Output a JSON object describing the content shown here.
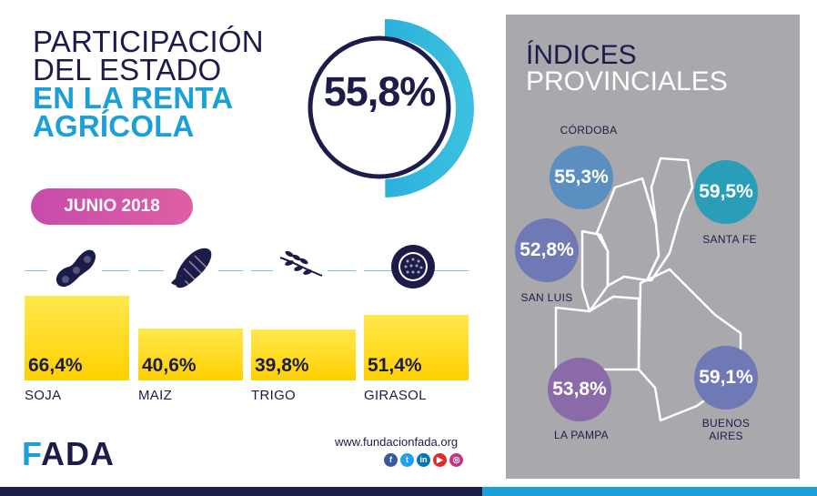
{
  "title": {
    "line1": "PARTICIPACIÓN",
    "line2": "DEL ESTADO",
    "line3": "EN LA RENTA",
    "line4": "AGRÍCOLA"
  },
  "headline_value": "55,8%",
  "date": "JUNIO 2018",
  "crops": [
    {
      "label": "SOJA",
      "value_text": "66,4%",
      "icon": "soybean-icon"
    },
    {
      "label": "MAIZ",
      "value_text": "40,6%",
      "icon": "corn-icon"
    },
    {
      "label": "TRIGO",
      "value_text": "39,8%",
      "icon": "wheat-icon"
    },
    {
      "label": "GIRASOL",
      "value_text": "51,4%",
      "icon": "sunflower-icon"
    }
  ],
  "chart_data": {
    "type": "bar",
    "title": "PARTICIPACIÓN DEL ESTADO EN LA RENTA AGRÍCOLA",
    "categories": [
      "SOJA",
      "MAIZ",
      "TRIGO",
      "GIRASOL"
    ],
    "values": [
      66.4,
      40.6,
      39.8,
      51.4
    ],
    "ylim": [
      0,
      100
    ],
    "grid": false,
    "overall_value": 55.8,
    "provincial_values": [
      {
        "province": "CÓRDOBA",
        "value": 55.3
      },
      {
        "province": "SANTA FE",
        "value": 59.5
      },
      {
        "province": "SAN LUIS",
        "value": 52.8
      },
      {
        "province": "LA PAMPA",
        "value": 53.8
      },
      {
        "province": "BUENOS AIRES",
        "value": 59.1
      }
    ]
  },
  "panel": {
    "title_line1": "ÍNDICES",
    "title_line2": "PROVINCIALES"
  },
  "provinces": [
    {
      "name": "CÓRDOBA",
      "value_text": "55,3%",
      "color": "#5b8fc0"
    },
    {
      "name": "SANTA FE",
      "value_text": "59,5%",
      "color": "#2a9db8"
    },
    {
      "name": "SAN LUIS",
      "value_text": "52,8%",
      "color": "#6f79b6"
    },
    {
      "name": "LA PAMPA",
      "value_text": "53,8%",
      "color": "#8a6aa8"
    },
    {
      "name_line1": "BUENOS",
      "name_line2": "AIRES",
      "value_text": "59,1%",
      "color": "#6f79b6"
    }
  ],
  "footer": {
    "logo_part1": "F",
    "logo_part2": "ADA",
    "website": "www.fundacionfada.org",
    "social": [
      {
        "name": "facebook-icon",
        "glyph": "f",
        "color": "#3b5998"
      },
      {
        "name": "twitter-icon",
        "glyph": "t",
        "color": "#1da1f2"
      },
      {
        "name": "linkedin-icon",
        "glyph": "in",
        "color": "#0077b5"
      },
      {
        "name": "youtube-icon",
        "glyph": "▶",
        "color": "#e02a2a"
      },
      {
        "name": "instagram-icon",
        "glyph": "◎",
        "color": "#c13584"
      }
    ]
  },
  "colors": {
    "navy": "#1b1c4a",
    "cyan": "#1a9fd6",
    "bar_yellow": "#ffd800",
    "pill_pink": "#d354a7",
    "panel_gray": "#a9a9ad"
  }
}
